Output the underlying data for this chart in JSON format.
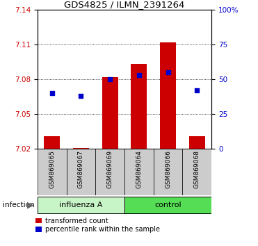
{
  "title": "GDS4825 / ILMN_2391264",
  "samples": [
    "GSM869065",
    "GSM869067",
    "GSM869069",
    "GSM869064",
    "GSM869066",
    "GSM869068"
  ],
  "red_values": [
    7.031,
    7.021,
    7.082,
    7.093,
    7.112,
    7.031
  ],
  "blue_values_pct": [
    40,
    38,
    50,
    53,
    55,
    42
  ],
  "ylim_left": [
    7.02,
    7.14
  ],
  "ylim_right": [
    0,
    100
  ],
  "yticks_left": [
    7.02,
    7.05,
    7.08,
    7.11,
    7.14
  ],
  "yticks_right": [
    0,
    25,
    50,
    75,
    100
  ],
  "groups": [
    {
      "label": "influenza A",
      "indices": [
        0,
        1,
        2
      ],
      "color": "#c8f5c8"
    },
    {
      "label": "control",
      "indices": [
        3,
        4,
        5
      ],
      "color": "#55dd55"
    }
  ],
  "infection_label": "infection",
  "bar_color": "#cc0000",
  "dot_color": "#0000cc",
  "bar_width": 0.55,
  "tick_label_color_left": "#cc0000",
  "tick_label_color_right": "#0000cc",
  "legend_red_label": "transformed count",
  "legend_blue_label": "percentile rank within the sample",
  "base_value": 7.02,
  "label_box_color": "#cccccc",
  "bg_color": "#ffffff"
}
